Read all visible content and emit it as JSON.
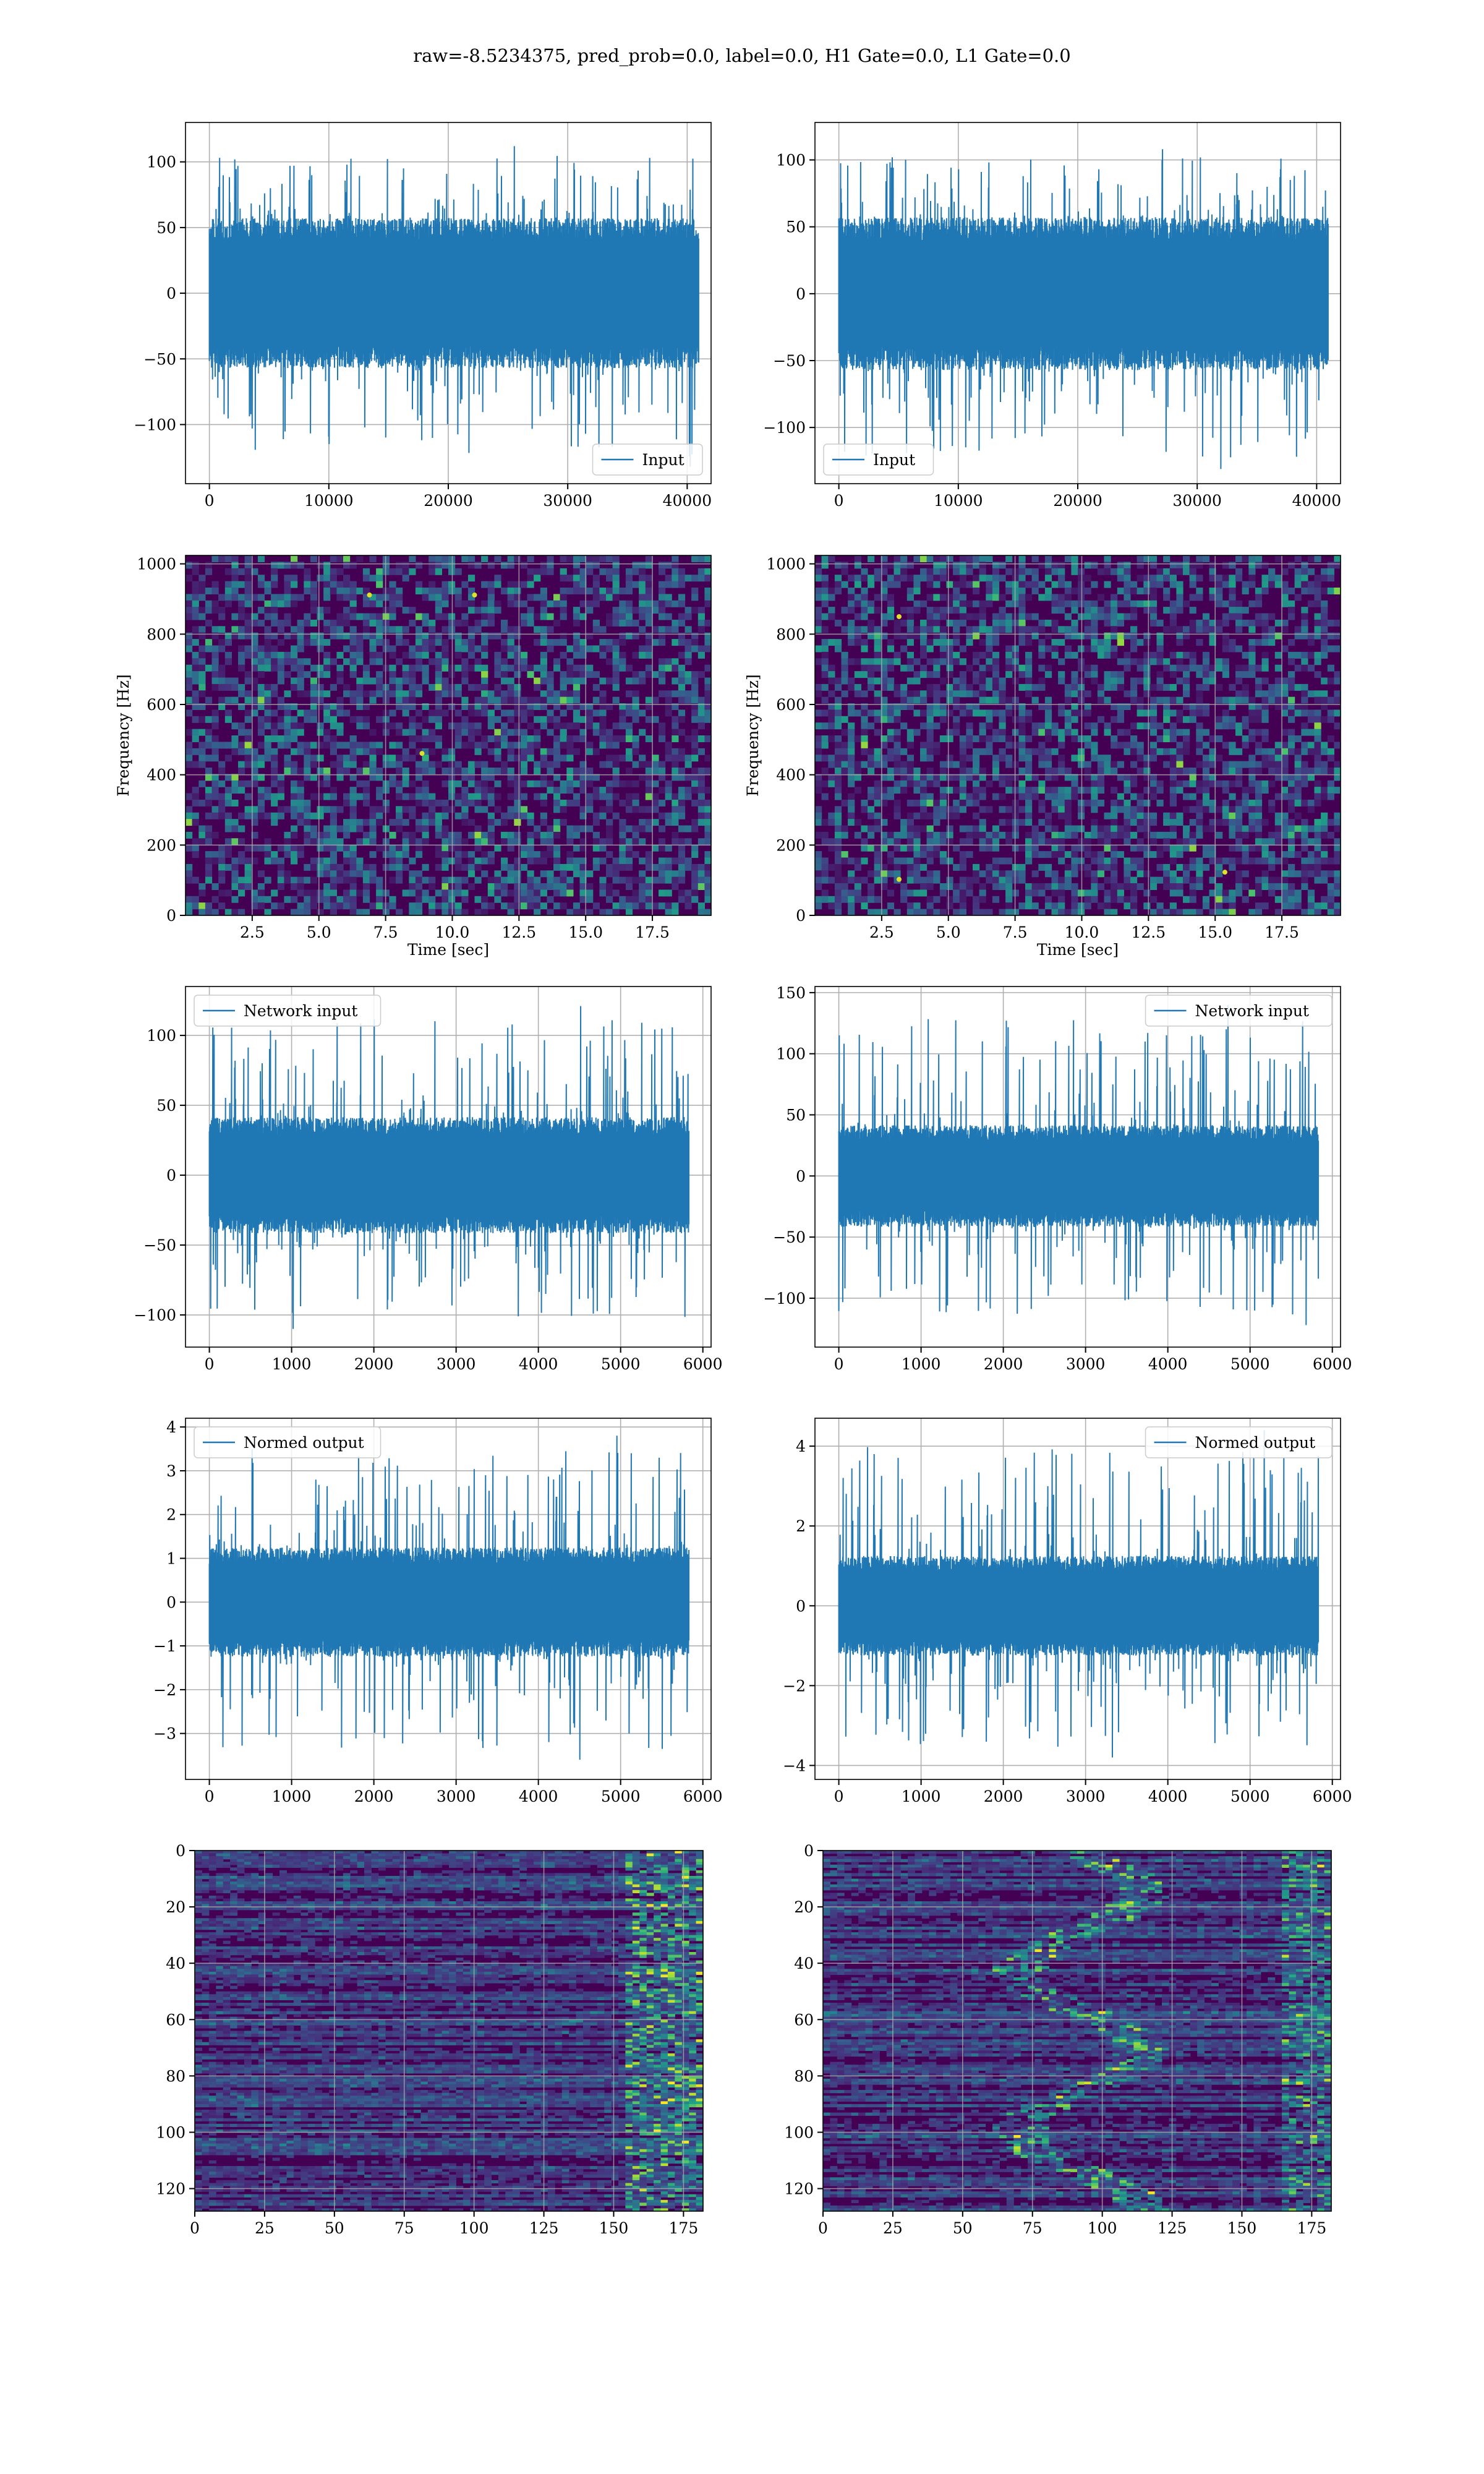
{
  "figure": {
    "suptitle": "raw=-8.5234375, pred_prob=0.0, label=0.0, H1 Gate=0.0, L1 Gate=0.0"
  },
  "colors": {
    "line": "#1f77b4",
    "grid": "#b0b0b0",
    "viridis": [
      "#440154",
      "#46327e",
      "#365c8d",
      "#277f8e",
      "#1fa187",
      "#4ac16d",
      "#a0da39",
      "#fde725"
    ]
  },
  "chart_data": [
    {
      "id": "input-h1",
      "type": "line",
      "xlabel": "",
      "ylabel": "",
      "xlim": [
        -2000,
        42000
      ],
      "ylim": [
        -145,
        130
      ],
      "xticks": [
        0,
        10000,
        20000,
        30000,
        40000
      ],
      "xticklabels": [
        "0",
        "10000",
        "20000",
        "30000",
        "40000"
      ],
      "yticks": [
        -100,
        -50,
        0,
        50,
        100
      ],
      "yticklabels": [
        "−100",
        "−50",
        "0",
        "50",
        "100"
      ],
      "legend": "lower-right",
      "series": [
        {
          "name": "Input",
          "x_range": [
            0,
            40960
          ],
          "envelope_core": [
            -55,
            55
          ],
          "peak_max": 112,
          "peak_min": -132
        }
      ]
    },
    {
      "id": "input-l1",
      "type": "line",
      "xlabel": "",
      "ylabel": "",
      "xlim": [
        -2000,
        42000
      ],
      "ylim": [
        -142,
        128
      ],
      "xticks": [
        0,
        10000,
        20000,
        30000,
        40000
      ],
      "xticklabels": [
        "0",
        "10000",
        "20000",
        "30000",
        "40000"
      ],
      "yticks": [
        -100,
        -50,
        0,
        50,
        100
      ],
      "yticklabels": [
        "−100",
        "−50",
        "0",
        "50",
        "100"
      ],
      "legend": "lower-left",
      "series": [
        {
          "name": "Input",
          "x_range": [
            0,
            40960
          ],
          "envelope_core": [
            -55,
            55
          ],
          "peak_max": 108,
          "peak_min": -131
        }
      ]
    },
    {
      "id": "spec-h1",
      "type": "heatmap",
      "xlabel": "Time [sec]",
      "ylabel": "Frequency [Hz]",
      "xlim": [
        0,
        19.7
      ],
      "ylim": [
        0,
        1024
      ],
      "xticks": [
        2.5,
        5.0,
        7.5,
        10.0,
        12.5,
        15.0,
        17.5
      ],
      "xticklabels": [
        "2.5",
        "5.0",
        "7.5",
        "10.0",
        "12.5",
        "15.0",
        "17.5"
      ],
      "yticks": [
        0,
        200,
        400,
        600,
        800,
        1000
      ],
      "yticklabels": [
        "0",
        "200",
        "400",
        "600",
        "800",
        "1000"
      ],
      "colormap": "viridis"
    },
    {
      "id": "spec-l1",
      "type": "heatmap",
      "xlabel": "Time [sec]",
      "ylabel": "Frequency [Hz]",
      "xlim": [
        0,
        19.7
      ],
      "ylim": [
        0,
        1024
      ],
      "xticks": [
        2.5,
        5.0,
        7.5,
        10.0,
        12.5,
        15.0,
        17.5
      ],
      "xticklabels": [
        "2.5",
        "5.0",
        "7.5",
        "10.0",
        "12.5",
        "15.0",
        "17.5"
      ],
      "yticks": [
        0,
        200,
        400,
        600,
        800,
        1000
      ],
      "yticklabels": [
        "0",
        "200",
        "400",
        "600",
        "800",
        "1000"
      ],
      "colormap": "viridis"
    },
    {
      "id": "netin-h1",
      "type": "line",
      "xlabel": "",
      "ylabel": "",
      "xlim": [
        -290,
        6100
      ],
      "ylim": [
        -123,
        135
      ],
      "xticks": [
        0,
        1000,
        2000,
        3000,
        4000,
        5000,
        6000
      ],
      "xticklabels": [
        "0",
        "1000",
        "2000",
        "3000",
        "4000",
        "5000",
        "6000"
      ],
      "yticks": [
        -100,
        -50,
        0,
        50,
        100
      ],
      "yticklabels": [
        "−100",
        "−50",
        "0",
        "50",
        "100"
      ],
      "legend": "upper-left",
      "series": [
        {
          "name": "Network input",
          "x_range": [
            0,
            5830
          ],
          "envelope_core": [
            -40,
            40
          ],
          "peak_max": 121,
          "peak_min": -110
        }
      ]
    },
    {
      "id": "netin-l1",
      "type": "line",
      "xlabel": "",
      "ylabel": "",
      "xlim": [
        -290,
        6100
      ],
      "ylim": [
        -140,
        155
      ],
      "xticks": [
        0,
        1000,
        2000,
        3000,
        4000,
        5000,
        6000
      ],
      "xticklabels": [
        "0",
        "1000",
        "2000",
        "3000",
        "4000",
        "5000",
        "6000"
      ],
      "yticks": [
        -100,
        -50,
        0,
        50,
        100,
        150
      ],
      "yticklabels": [
        "−100",
        "−50",
        "0",
        "50",
        "100",
        "150"
      ],
      "legend": "upper-right",
      "series": [
        {
          "name": "Network input",
          "x_range": [
            0,
            5830
          ],
          "envelope_core": [
            -40,
            40
          ],
          "peak_max": 140,
          "peak_min": -122
        }
      ]
    },
    {
      "id": "normed-h1",
      "type": "line",
      "xlabel": "",
      "ylabel": "",
      "xlim": [
        -290,
        6100
      ],
      "ylim": [
        -4.05,
        4.2
      ],
      "xticks": [
        0,
        1000,
        2000,
        3000,
        4000,
        5000,
        6000
      ],
      "xticklabels": [
        "0",
        "1000",
        "2000",
        "3000",
        "4000",
        "5000",
        "6000"
      ],
      "yticks": [
        -3,
        -2,
        -1,
        0,
        1,
        2,
        3,
        4
      ],
      "yticklabels": [
        "−3",
        "−2",
        "−1",
        "0",
        "1",
        "2",
        "3",
        "4"
      ],
      "legend": "upper-left",
      "series": [
        {
          "name": "Normed output",
          "x_range": [
            0,
            5830
          ],
          "envelope_core": [
            -1.2,
            1.2
          ],
          "peak_max": 3.8,
          "peak_min": -3.6
        }
      ]
    },
    {
      "id": "normed-l1",
      "type": "line",
      "xlabel": "",
      "ylabel": "",
      "xlim": [
        -290,
        6100
      ],
      "ylim": [
        -4.35,
        4.7
      ],
      "xticks": [
        0,
        1000,
        2000,
        3000,
        4000,
        5000,
        6000
      ],
      "xticklabels": [
        "0",
        "1000",
        "2000",
        "3000",
        "4000",
        "5000",
        "6000"
      ],
      "yticks": [
        -4,
        -2,
        0,
        2,
        4
      ],
      "yticklabels": [
        "−4",
        "−2",
        "0",
        "2",
        "4"
      ],
      "legend": "upper-right",
      "series": [
        {
          "name": "Normed output",
          "x_range": [
            0,
            5830
          ],
          "envelope_core": [
            -1.2,
            1.2
          ],
          "peak_max": 4.4,
          "peak_min": -3.8
        }
      ]
    },
    {
      "id": "feat-h1",
      "type": "heatmap",
      "xlabel": "",
      "ylabel": "",
      "xlim": [
        0,
        182
      ],
      "ylim": [
        128,
        0
      ],
      "xticks": [
        0,
        25,
        50,
        75,
        100,
        125,
        150,
        175
      ],
      "xticklabels": [
        "0",
        "25",
        "50",
        "75",
        "100",
        "125",
        "150",
        "175"
      ],
      "yticks": [
        0,
        20,
        40,
        60,
        80,
        100,
        120
      ],
      "yticklabels": [
        "0",
        "20",
        "40",
        "60",
        "80",
        "100",
        "120"
      ],
      "colormap": "viridis"
    },
    {
      "id": "feat-l1",
      "type": "heatmap",
      "xlabel": "",
      "ylabel": "",
      "xlim": [
        0,
        182
      ],
      "ylim": [
        128,
        0
      ],
      "xticks": [
        0,
        25,
        50,
        75,
        100,
        125,
        150,
        175
      ],
      "xticklabels": [
        "0",
        "25",
        "50",
        "75",
        "100",
        "125",
        "150",
        "175"
      ],
      "yticks": [
        0,
        20,
        40,
        60,
        80,
        100,
        120
      ],
      "yticklabels": [
        "0",
        "20",
        "40",
        "60",
        "80",
        "100",
        "120"
      ],
      "colormap": "viridis"
    }
  ]
}
